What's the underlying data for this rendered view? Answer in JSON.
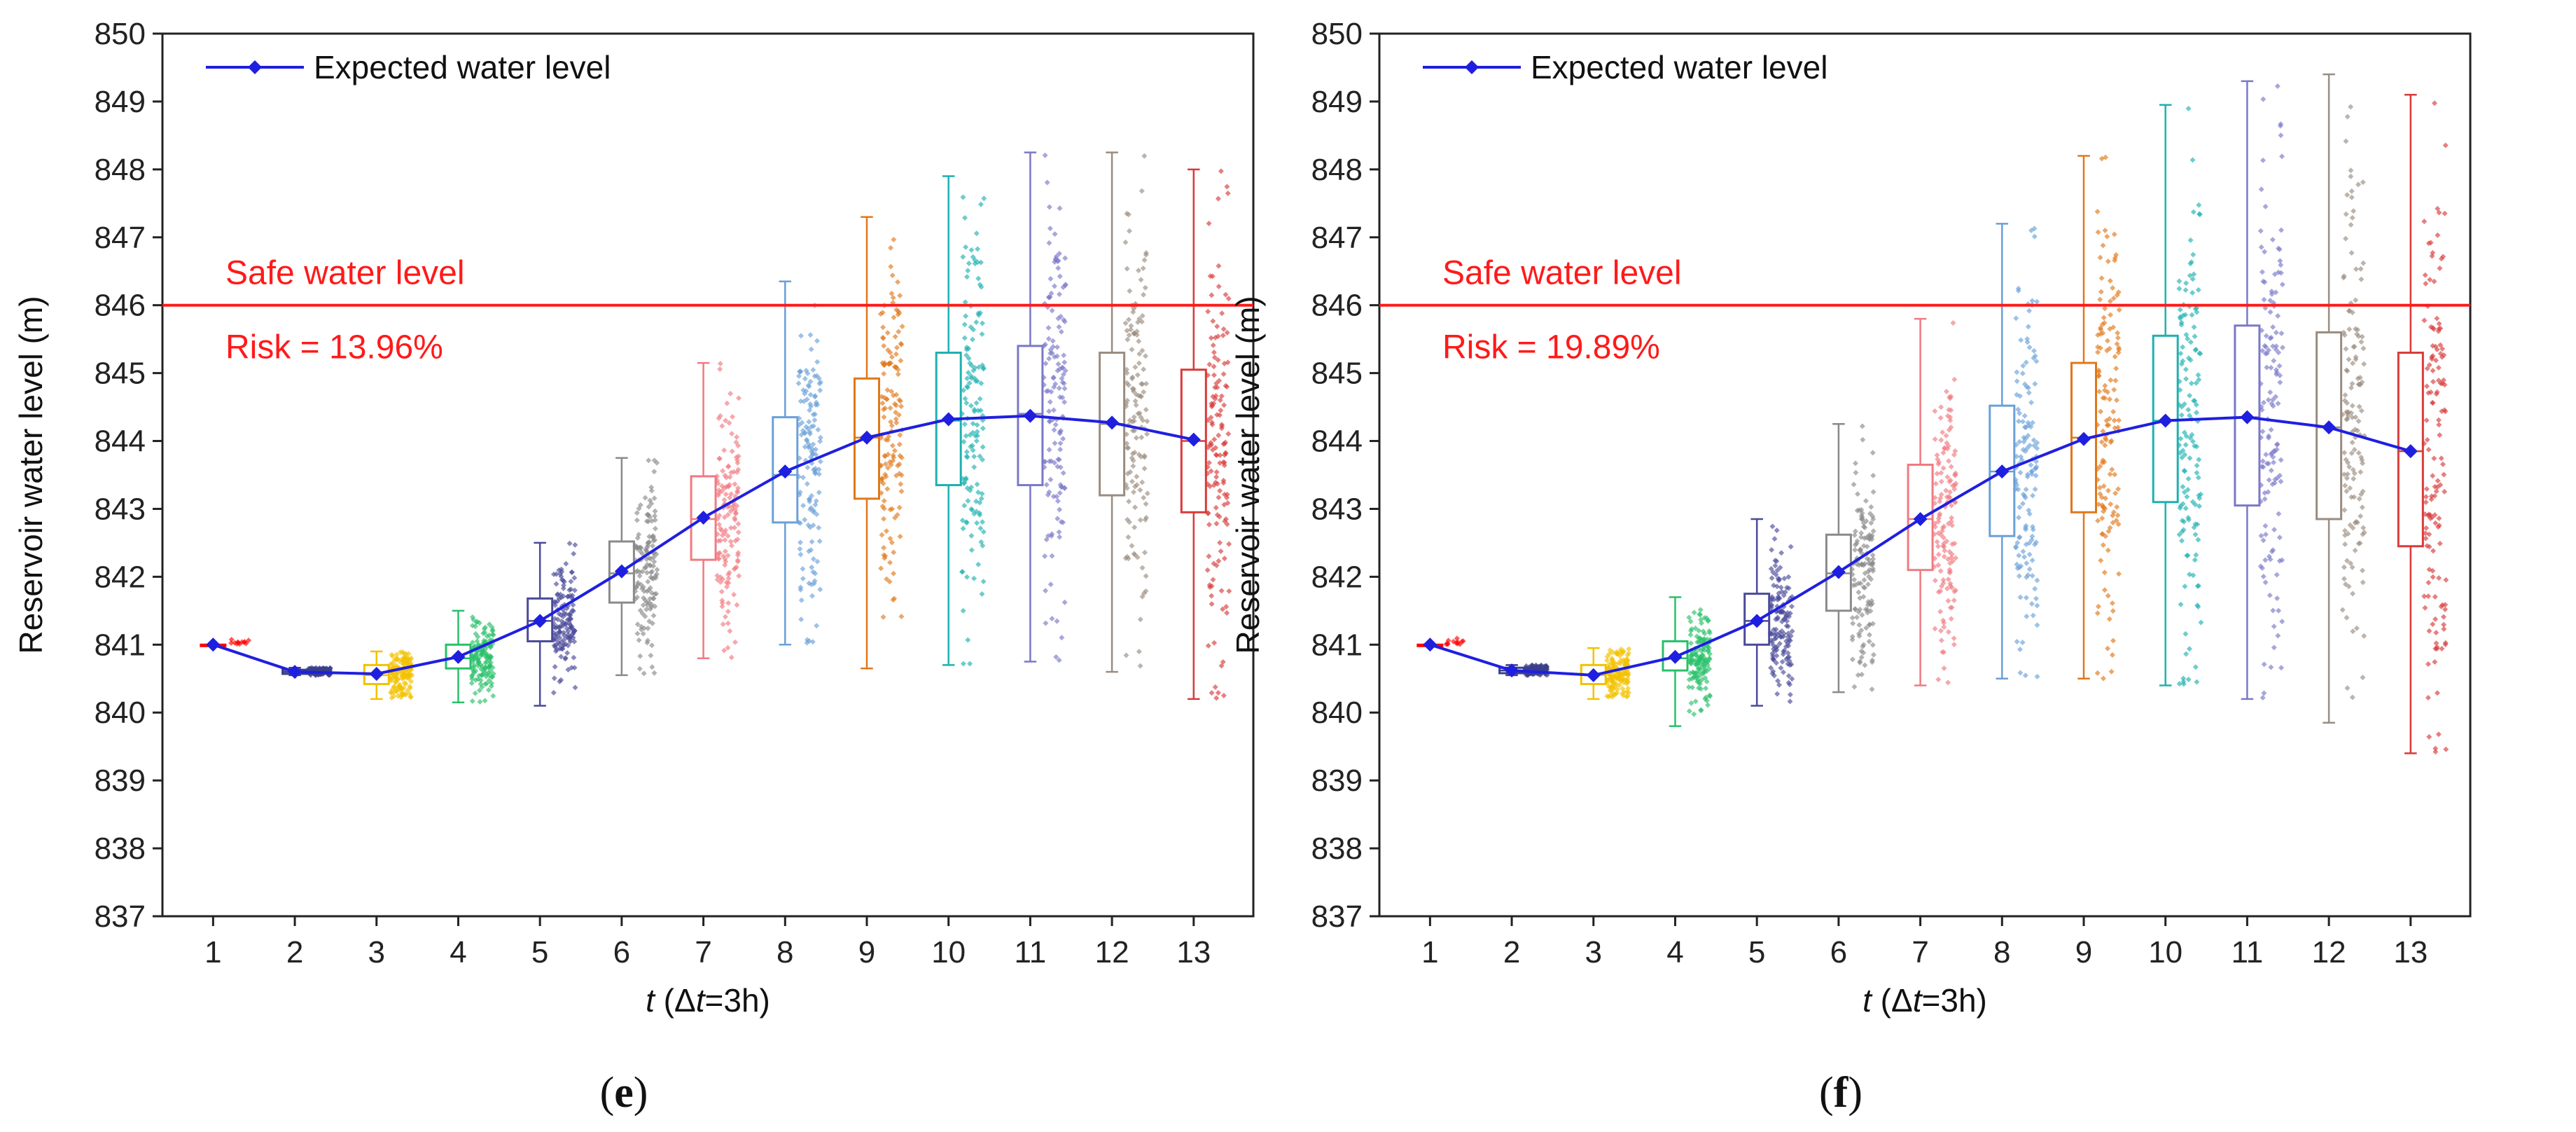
{
  "colors": {
    "expected_line": "#1f1fe0",
    "safe_line": "#ff1a1a",
    "annotation": "#ff1a1a",
    "axis": "#222222",
    "box_colors": [
      "#ff0000",
      "#3b3f8c",
      "#f2c200",
      "#29c06a",
      "#4a4a9a",
      "#8a8a8a",
      "#f07a80",
      "#6aa0d8",
      "#e0781a",
      "#1fb0b0",
      "#7a78c8",
      "#9a8c80",
      "#d83a3a"
    ]
  },
  "chart_data": [
    {
      "type": "box",
      "panel_label": "e",
      "panel_label_open": "(",
      "panel_label_close": ")",
      "title": "",
      "xlabel_italic": "t",
      "xlabel_rest_open": " (Δ",
      "xlabel_rest_t": "t",
      "xlabel_rest_close": "=3h)",
      "ylabel": "Reservoir water level (m)",
      "ylim": [
        837,
        850
      ],
      "yticks": [
        837,
        838,
        839,
        840,
        841,
        842,
        843,
        844,
        845,
        846,
        847,
        848,
        849,
        850
      ],
      "categories": [
        "1",
        "2",
        "3",
        "4",
        "5",
        "6",
        "7",
        "8",
        "9",
        "10",
        "11",
        "12",
        "13"
      ],
      "legend_label": "Expected water level",
      "safe_level": 846,
      "safe_label": "Safe water level",
      "risk_label": "Risk = 13.96%",
      "series": [
        {
          "name": "Expected water level",
          "values": [
            841.0,
            840.6,
            840.57,
            840.82,
            841.35,
            842.08,
            842.87,
            843.55,
            844.05,
            844.32,
            844.37,
            844.27,
            844.02
          ]
        }
      ],
      "boxes": [
        {
          "min": 841.0,
          "q1": 841.0,
          "median": 841.0,
          "q3": 841.0,
          "max": 841.0
        },
        {
          "min": 840.55,
          "q1": 840.57,
          "median": 840.6,
          "q3": 840.63,
          "max": 840.66
        },
        {
          "min": 840.2,
          "q1": 840.42,
          "median": 840.55,
          "q3": 840.7,
          "max": 840.9
        },
        {
          "min": 840.15,
          "q1": 840.65,
          "median": 840.8,
          "q3": 841.0,
          "max": 841.5
        },
        {
          "min": 840.1,
          "q1": 841.05,
          "median": 841.35,
          "q3": 841.68,
          "max": 842.5
        },
        {
          "min": 840.55,
          "q1": 841.62,
          "median": 842.05,
          "q3": 842.52,
          "max": 843.75
        },
        {
          "min": 840.8,
          "q1": 842.25,
          "median": 842.85,
          "q3": 843.48,
          "max": 845.15
        },
        {
          "min": 841.0,
          "q1": 842.8,
          "median": 843.5,
          "q3": 844.35,
          "max": 846.35
        },
        {
          "min": 840.65,
          "q1": 843.15,
          "median": 844.05,
          "q3": 844.92,
          "max": 847.3
        },
        {
          "min": 840.7,
          "q1": 843.35,
          "median": 844.3,
          "q3": 845.3,
          "max": 847.9
        },
        {
          "min": 840.75,
          "q1": 843.35,
          "median": 844.4,
          "q3": 845.4,
          "max": 848.25
        },
        {
          "min": 840.6,
          "q1": 843.2,
          "median": 844.25,
          "q3": 845.3,
          "max": 848.25
        },
        {
          "min": 840.2,
          "q1": 842.95,
          "median": 844.0,
          "q3": 845.05,
          "max": 848.0
        }
      ]
    },
    {
      "type": "box",
      "panel_label": "f",
      "panel_label_open": "(",
      "panel_label_close": ")",
      "title": "",
      "xlabel_italic": "t",
      "xlabel_rest_open": " (Δ",
      "xlabel_rest_t": "t",
      "xlabel_rest_close": "=3h)",
      "ylabel": "Reservoir water level (m)",
      "ylim": [
        837,
        850
      ],
      "yticks": [
        837,
        838,
        839,
        840,
        841,
        842,
        843,
        844,
        845,
        846,
        847,
        848,
        849,
        850
      ],
      "categories": [
        "1",
        "2",
        "3",
        "4",
        "5",
        "6",
        "7",
        "8",
        "9",
        "10",
        "11",
        "12",
        "13"
      ],
      "legend_label": "Expected water level",
      "safe_level": 846,
      "safe_label": "Safe water level",
      "risk_label": "Risk = 19.89%",
      "series": [
        {
          "name": "Expected water level",
          "values": [
            841.0,
            840.62,
            840.55,
            840.82,
            841.35,
            842.07,
            842.85,
            843.55,
            844.03,
            844.3,
            844.35,
            844.2,
            843.85
          ]
        }
      ],
      "boxes": [
        {
          "min": 841.0,
          "q1": 841.0,
          "median": 841.0,
          "q3": 841.0,
          "max": 841.0
        },
        {
          "min": 840.55,
          "q1": 840.58,
          "median": 840.62,
          "q3": 840.66,
          "max": 840.7
        },
        {
          "min": 840.2,
          "q1": 840.42,
          "median": 840.55,
          "q3": 840.7,
          "max": 840.95
        },
        {
          "min": 839.8,
          "q1": 840.62,
          "median": 840.8,
          "q3": 841.05,
          "max": 841.7
        },
        {
          "min": 840.1,
          "q1": 841.0,
          "median": 841.35,
          "q3": 841.75,
          "max": 842.85
        },
        {
          "min": 840.3,
          "q1": 841.5,
          "median": 842.05,
          "q3": 842.62,
          "max": 844.25
        },
        {
          "min": 840.4,
          "q1": 842.1,
          "median": 842.85,
          "q3": 843.65,
          "max": 845.8
        },
        {
          "min": 840.5,
          "q1": 842.6,
          "median": 843.55,
          "q3": 844.52,
          "max": 847.2
        },
        {
          "min": 840.5,
          "q1": 842.95,
          "median": 844.05,
          "q3": 845.15,
          "max": 848.2
        },
        {
          "min": 840.4,
          "q1": 843.1,
          "median": 844.3,
          "q3": 845.55,
          "max": 848.95
        },
        {
          "min": 840.2,
          "q1": 843.05,
          "median": 844.35,
          "q3": 845.7,
          "max": 849.3
        },
        {
          "min": 839.85,
          "q1": 842.85,
          "median": 844.2,
          "q3": 845.6,
          "max": 849.4
        },
        {
          "min": 839.4,
          "q1": 842.45,
          "median": 843.85,
          "q3": 845.3,
          "max": 849.1
        }
      ]
    }
  ]
}
